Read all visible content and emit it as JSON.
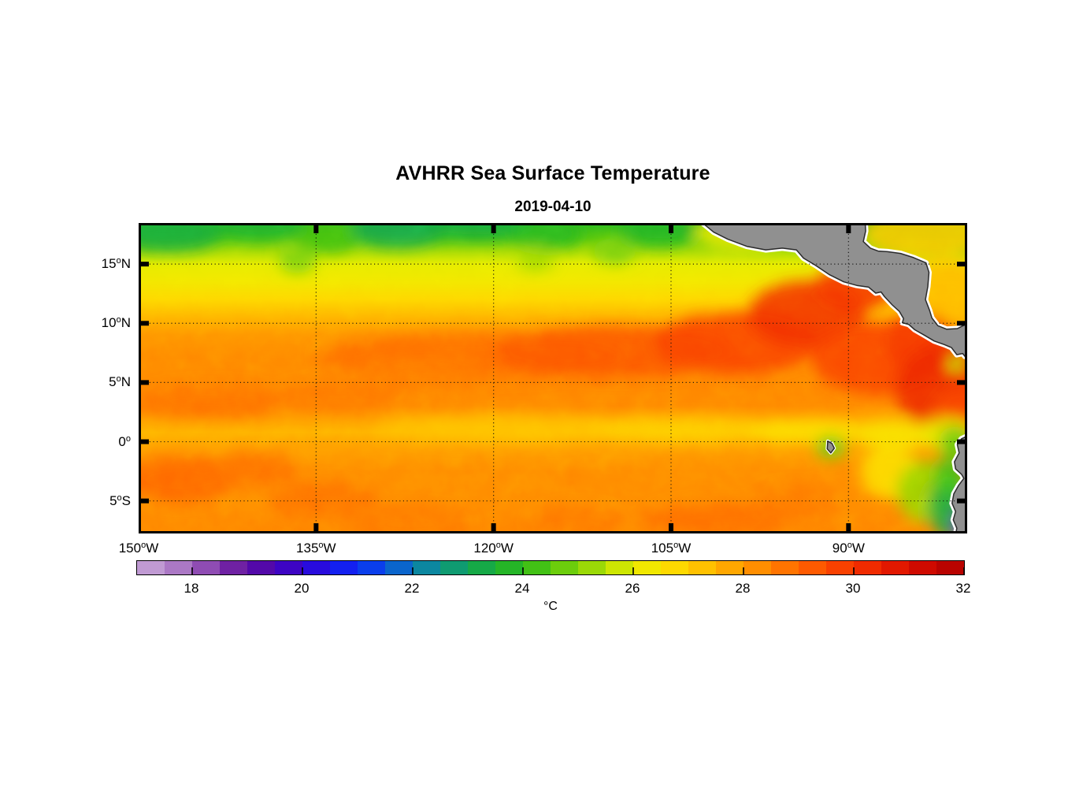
{
  "title": "AVHRR Sea Surface Temperature",
  "subtitle": "2019-04-10",
  "chart_data": {
    "type": "heatmap",
    "title": "AVHRR Sea Surface Temperature",
    "date": "2019-04-10",
    "grid": "dotted",
    "x_axis": {
      "unit_suffix": "W",
      "deg_superscript": "o",
      "range_deg_west": [
        150,
        79.97
      ],
      "ticks": [
        {
          "value": 150,
          "num": "150",
          "suffix": "W"
        },
        {
          "value": 135,
          "num": "135",
          "suffix": "W"
        },
        {
          "value": 120,
          "num": "120",
          "suffix": "W"
        },
        {
          "value": 105,
          "num": "105",
          "suffix": "W"
        },
        {
          "value": 90,
          "num": "90",
          "suffix": "W"
        }
      ]
    },
    "y_axis": {
      "deg_superscript": "o",
      "range_deg_north": [
        -7.75,
        18.47
      ],
      "ticks": [
        {
          "value": 15,
          "num": "15",
          "suffix": "N"
        },
        {
          "value": 10,
          "num": "10",
          "suffix": "N"
        },
        {
          "value": 5,
          "num": "5",
          "suffix": "N"
        },
        {
          "value": 0,
          "num": "0",
          "suffix": ""
        },
        {
          "value": -5,
          "num": "5",
          "suffix": "S"
        }
      ]
    },
    "colorbar": {
      "range_c": [
        17,
        32
      ],
      "segment_step_c": 0.5,
      "ticks": [
        18,
        20,
        22,
        24,
        26,
        28,
        30,
        32
      ],
      "unit": "°C"
    },
    "colormap": [
      [
        17.0,
        "#C8A8DA"
      ],
      [
        17.5,
        "#B78CCC"
      ],
      [
        18.0,
        "#9E63BE"
      ],
      [
        18.5,
        "#7F35A8"
      ],
      [
        19.0,
        "#5E0D9E"
      ],
      [
        19.5,
        "#4705B4"
      ],
      [
        20.0,
        "#3303D1"
      ],
      [
        20.5,
        "#1C13E8"
      ],
      [
        21.0,
        "#0A2CF8"
      ],
      [
        21.5,
        "#0950E0"
      ],
      [
        22.0,
        "#0B7AB8"
      ],
      [
        22.5,
        "#0D9387"
      ],
      [
        23.0,
        "#10A35B"
      ],
      [
        23.5,
        "#1BAE33"
      ],
      [
        24.0,
        "#2EBB1A"
      ],
      [
        24.5,
        "#55C70F"
      ],
      [
        25.0,
        "#83D209"
      ],
      [
        25.5,
        "#B3DF04"
      ],
      [
        26.0,
        "#E6EC00"
      ],
      [
        26.5,
        "#FCE400"
      ],
      [
        27.0,
        "#FFCE00"
      ],
      [
        27.5,
        "#FFB400"
      ],
      [
        28.0,
        "#FF9A00"
      ],
      [
        28.5,
        "#FF8100"
      ],
      [
        29.0,
        "#FF6700"
      ],
      [
        29.5,
        "#FC4D00"
      ],
      [
        30.0,
        "#F63500"
      ],
      [
        30.5,
        "#E92000"
      ],
      [
        31.0,
        "#DA0F00"
      ],
      [
        31.5,
        "#C40500"
      ],
      [
        32.0,
        "#AE0000"
      ]
    ],
    "base_profile_lat_tempc": [
      [
        18.47,
        23.9
      ],
      [
        17.2,
        24.5
      ],
      [
        16,
        25.4
      ],
      [
        15,
        26.0
      ],
      [
        13.5,
        26.3
      ],
      [
        12,
        26.8
      ],
      [
        10.5,
        27.5
      ],
      [
        9,
        28.1
      ],
      [
        7,
        28.35
      ],
      [
        5,
        28.4
      ],
      [
        3,
        28.35
      ],
      [
        1.8,
        27.9
      ],
      [
        0.8,
        27.55
      ],
      [
        -0.5,
        27.95
      ],
      [
        -2.5,
        28.3
      ],
      [
        -5,
        28.3
      ],
      [
        -7.75,
        28.45
      ]
    ],
    "features_lonW_latN_rx_ry_tempc": [
      [
        147.5,
        17.6,
        4.5,
        1.6,
        23.4
      ],
      [
        140,
        18.4,
        4,
        1.3,
        23.6
      ],
      [
        134,
        17.3,
        2.5,
        1.4,
        24.3
      ],
      [
        128,
        18,
        4,
        1.6,
        23.2
      ],
      [
        121.5,
        18.5,
        5,
        1.4,
        23.4
      ],
      [
        115.5,
        17.6,
        3,
        1.3,
        23.9
      ],
      [
        109.8,
        16.1,
        1.8,
        1.1,
        24.9
      ],
      [
        106,
        17.9,
        3.5,
        1.4,
        23.8
      ],
      [
        136.6,
        15.4,
        1.6,
        1.2,
        24.9
      ],
      [
        116.5,
        15.4,
        1.6,
        1,
        25.3
      ],
      [
        99,
        17.6,
        4,
        1.5,
        26.2
      ],
      [
        122,
        7.2,
        13,
        2,
        28.9
      ],
      [
        110,
        7.6,
        10,
        2.2,
        29.3
      ],
      [
        99.5,
        8.3,
        7,
        2.6,
        29.7
      ],
      [
        93.5,
        10.8,
        5,
        2.8,
        30.1
      ],
      [
        89.5,
        13,
        3.5,
        2,
        30
      ],
      [
        87.5,
        7,
        5.5,
        3,
        29.7
      ],
      [
        84,
        8.5,
        3,
        2.5,
        29.9
      ],
      [
        82,
        4.5,
        4,
        3.8,
        30.3
      ],
      [
        80.5,
        2,
        2.5,
        2.5,
        29.6
      ],
      [
        83.5,
        17.6,
        5.5,
        2.2,
        27.1
      ],
      [
        81.5,
        12.8,
        3.5,
        2.5,
        27.4
      ],
      [
        144,
        3.4,
        6.5,
        1.4,
        28.8
      ],
      [
        133,
        3.8,
        5.5,
        1.2,
        28.7
      ],
      [
        126,
        5.5,
        5,
        1.5,
        28.6
      ],
      [
        119,
        1.1,
        11,
        1.1,
        27.2
      ],
      [
        104,
        1,
        8,
        1,
        26.9
      ],
      [
        93.5,
        0.9,
        5,
        1,
        26.6
      ],
      [
        86,
        0.6,
        3.5,
        1.2,
        26.4
      ],
      [
        146.5,
        -3.2,
        4.5,
        2,
        29
      ],
      [
        140,
        -2.3,
        3.5,
        1.4,
        28.8
      ],
      [
        134.5,
        -4.9,
        4.5,
        1.6,
        28.8
      ],
      [
        127,
        -7,
        5,
        1.5,
        28.7
      ],
      [
        113,
        -6.8,
        4,
        1.3,
        28.7
      ],
      [
        101,
        -6.6,
        6.5,
        1.5,
        28.9
      ],
      [
        94.5,
        -5.2,
        3.5,
        1.5,
        28.7
      ],
      [
        86.5,
        -2.6,
        2.5,
        2.2,
        26.6
      ],
      [
        83.5,
        -4.2,
        2.4,
        2.6,
        25.2
      ],
      [
        81.5,
        -5.6,
        1.7,
        2.6,
        23.3
      ],
      [
        81.4,
        -2.9,
        1.4,
        1.6,
        24.2
      ],
      [
        81.6,
        0.7,
        2.2,
        1.4,
        26
      ],
      [
        81,
        -0.1,
        1.4,
        1.4,
        24.6
      ],
      [
        80.3,
        -7.2,
        1,
        1.6,
        19.3
      ],
      [
        80.15,
        -7.7,
        0.7,
        0.9,
        18
      ],
      [
        91.5,
        -0.45,
        1.3,
        1,
        24.8
      ],
      [
        80.9,
        6.6,
        0.7,
        0.7,
        25.5
      ]
    ],
    "land": {
      "fill": "#909090",
      "outline": "#2A2A2A",
      "coast_fringe": "#FFFFFF",
      "polygons": [
        {
          "name": "central-america",
          "points": [
            [
              102.5,
              18.6
            ],
            [
              101.4,
              17.7
            ],
            [
              100.2,
              17.1
            ],
            [
              98.6,
              16.5
            ],
            [
              97.0,
              16.2
            ],
            [
              95.6,
              16.35
            ],
            [
              94.4,
              16.2
            ],
            [
              93.8,
              15.5
            ],
            [
              92.8,
              14.9
            ],
            [
              91.6,
              14.1
            ],
            [
              90.4,
              13.5
            ],
            [
              89.3,
              13.2
            ],
            [
              88.3,
              13.05
            ],
            [
              87.7,
              12.55
            ],
            [
              87.25,
              12.65
            ],
            [
              86.95,
              12.25
            ],
            [
              86.3,
              11.55
            ],
            [
              85.7,
              11.0
            ],
            [
              85.35,
              10.4
            ],
            [
              85.45,
              10.05
            ],
            [
              84.9,
              9.9
            ],
            [
              84.4,
              9.45
            ],
            [
              83.6,
              9.0
            ],
            [
              82.75,
              8.5
            ],
            [
              81.9,
              8.2
            ],
            [
              81.3,
              7.95
            ],
            [
              80.85,
              7.35
            ],
            [
              80.35,
              7.45
            ],
            [
              80.15,
              7.2
            ],
            [
              79.8,
              7.3
            ],
            [
              79.8,
              10.05
            ],
            [
              80.8,
              9.55
            ],
            [
              81.7,
              9.5
            ],
            [
              82.45,
              9.8
            ],
            [
              82.95,
              10.45
            ],
            [
              83.15,
              11.1
            ],
            [
              83.5,
              12.0
            ],
            [
              83.3,
              13.1
            ],
            [
              83.2,
              14.3
            ],
            [
              83.45,
              15.1
            ],
            [
              84.5,
              15.55
            ],
            [
              85.6,
              15.9
            ],
            [
              86.7,
              16.05
            ],
            [
              87.5,
              16.1
            ],
            [
              88.15,
              16.35
            ],
            [
              88.75,
              16.9
            ],
            [
              88.55,
              17.8
            ],
            [
              88.6,
              18.6
            ]
          ]
        },
        {
          "name": "south-america",
          "points": [
            [
              79.8,
              0.55
            ],
            [
              80.45,
              0.25
            ],
            [
              80.8,
              -0.25
            ],
            [
              80.65,
              -0.95
            ],
            [
              81.05,
              -1.7
            ],
            [
              80.95,
              -2.3
            ],
            [
              80.45,
              -2.75
            ],
            [
              80.25,
              -3.1
            ],
            [
              80.7,
              -3.7
            ],
            [
              81.1,
              -4.4
            ],
            [
              81.25,
              -5.2
            ],
            [
              80.95,
              -5.9
            ],
            [
              81.15,
              -6.6
            ],
            [
              80.85,
              -7.3
            ],
            [
              80.95,
              -7.9
            ],
            [
              79.8,
              -7.9
            ]
          ]
        },
        {
          "name": "galapagos-islands",
          "points": [
            [
              91.75,
              0.05
            ],
            [
              91.4,
              -0.15
            ],
            [
              91.2,
              -0.55
            ],
            [
              91.5,
              -0.95
            ],
            [
              91.8,
              -0.6
            ]
          ]
        }
      ]
    }
  }
}
